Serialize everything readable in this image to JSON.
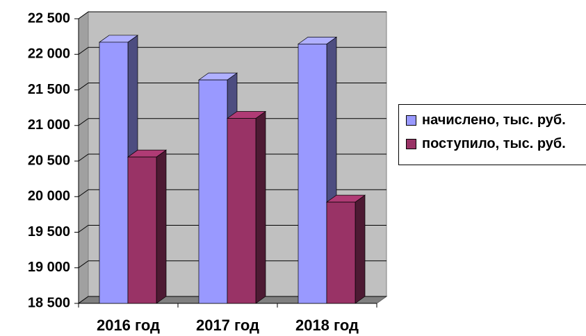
{
  "chart_data": {
    "type": "bar3d",
    "categories": [
      "2016 год",
      "2017 год",
      "2018 год"
    ],
    "series": [
      {
        "name": "начислено, тыс. руб.",
        "color": "#9999ff",
        "values": [
          22170,
          21640,
          22145
        ]
      },
      {
        "name": "поступило, тыс. руб.",
        "color": "#993366",
        "values": [
          20557,
          21100,
          19923
        ]
      }
    ],
    "ylim": [
      18500,
      22500
    ],
    "yticks": [
      {
        "value": 18500,
        "label": "18 500"
      },
      {
        "value": 19000,
        "label": "19 000"
      },
      {
        "value": 19500,
        "label": "19 500"
      },
      {
        "value": 20000,
        "label": "20 000"
      },
      {
        "value": 20500,
        "label": "20 500"
      },
      {
        "value": 21000,
        "label": "21 000"
      },
      {
        "value": 21500,
        "label": "21 500"
      },
      {
        "value": 22000,
        "label": "22 000"
      },
      {
        "value": 22500,
        "label": "22 500"
      }
    ],
    "grid": true,
    "legend": "right"
  }
}
